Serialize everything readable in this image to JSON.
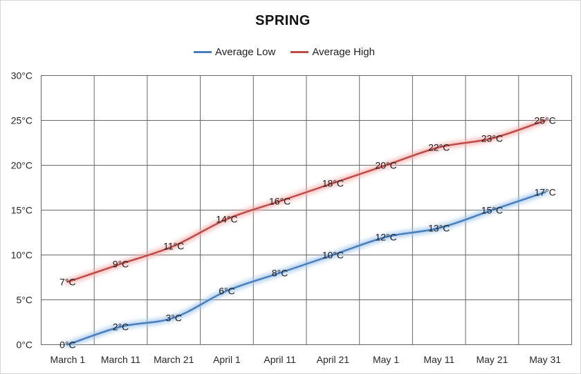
{
  "chart_data": {
    "type": "line",
    "title": "SPRING",
    "categories": [
      "March 1",
      "March 11",
      "March 21",
      "April 1",
      "April 11",
      "April 21",
      "May 1",
      "May 11",
      "May 21",
      "May 31"
    ],
    "series": [
      {
        "name": "Average Low",
        "values": [
          0,
          2,
          3,
          6,
          8,
          10,
          12,
          13,
          15,
          17
        ],
        "color": "#4a7ebb",
        "glow_color": "#9fc5ea"
      },
      {
        "name": "Average High",
        "values": [
          7,
          9,
          11,
          14,
          16,
          18,
          20,
          22,
          23,
          25
        ],
        "color": "#be4b48",
        "glow_color": "#f2aeac"
      }
    ],
    "ylabel_suffix": "°C",
    "data_label_suffix": "°C",
    "ylim": [
      0,
      30
    ],
    "ytick_step": 5,
    "grid": true,
    "legend_position": "top",
    "smooth": true
  },
  "colors": {
    "gridline": "#666666",
    "plot_border": "#666666",
    "axis_text": "#262626",
    "data_label_text": "#1a1a1a",
    "background": "#ffffff"
  }
}
